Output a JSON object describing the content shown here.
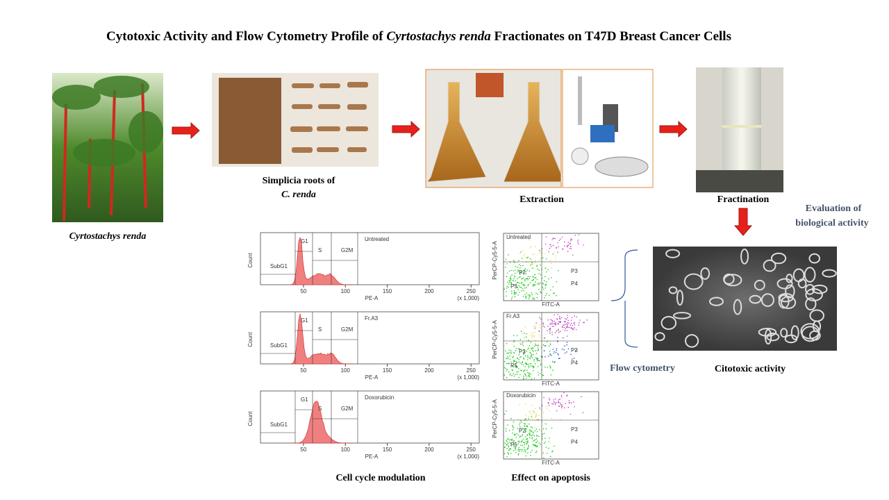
{
  "header": {
    "title_pre": "Cytotoxic Activity and Flow Cytometry Profile of ",
    "title_italic": "Cyrtostachys renda",
    "title_post": " Fractionates on T47D Breast Cancer Cells"
  },
  "steps": {
    "plant": "Cyrtostachys renda",
    "roots_line1": "Simplicia  roots of",
    "roots_line2": "C. renda",
    "extraction": "Extraction",
    "fractination": "Fractination",
    "evaluation_line1": "Evaluation  of",
    "evaluation_line2": "biological activity",
    "flow": "Flow cytometry",
    "cytotoxic": "Citotoxic activity"
  },
  "cell_cycle": {
    "caption": "Cell cycle modulation",
    "samples": [
      "Untreated",
      "Fr.A3",
      "Doxorubicin"
    ],
    "gates": [
      "SubG1",
      "G1",
      "S",
      "G2M"
    ],
    "x_label": "PE-A",
    "y_label": "Count",
    "x_scale": "(x 1,000)",
    "x_ticks": [
      "50",
      "100",
      "150",
      "200",
      "250"
    ]
  },
  "apoptosis": {
    "caption": "Effect on apoptosis",
    "x_label": "FITC-A",
    "y_label": "PerCP-Cy5-5-A",
    "gates": [
      "P2",
      "P3",
      "P4",
      "P5"
    ]
  }
}
